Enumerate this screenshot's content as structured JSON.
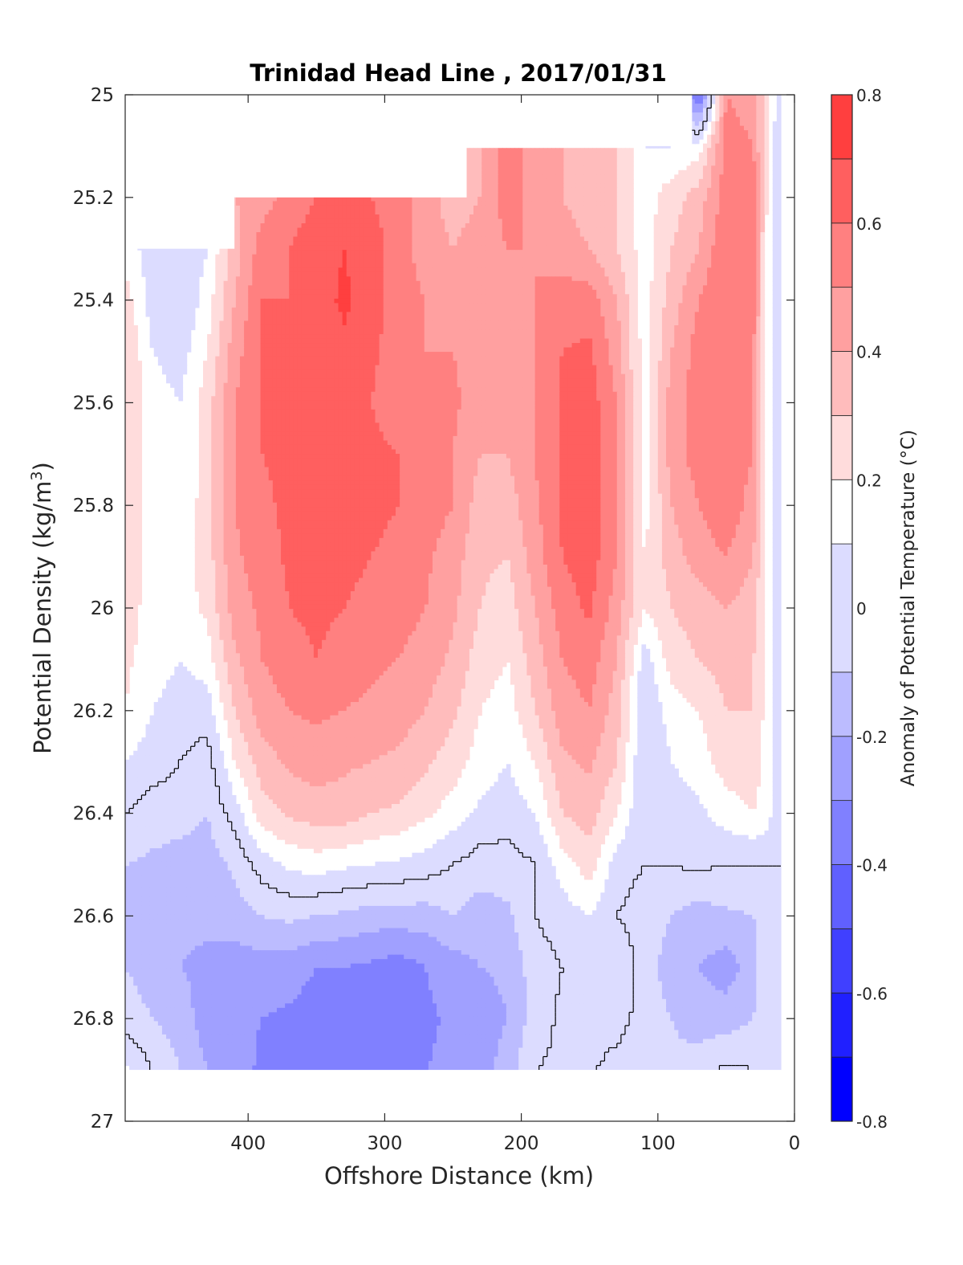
{
  "chart_data": {
    "type": "heatmap",
    "subtype": "filled-contour",
    "title": "Trinidad Head Line , 2017/01/31",
    "xlabel": "Offshore Distance (km)",
    "ylabel": "Potential Density (kg/m³)",
    "ylabel_main": "Potential Density (kg/m",
    "ylabel_sup": "3",
    "ylabel_end": ")",
    "xlim": [
      490,
      0
    ],
    "x_reversed": true,
    "ylim": [
      25,
      27
    ],
    "y_reversed": true,
    "xticks": [
      "400",
      "300",
      "200",
      "100",
      "0"
    ],
    "xtick_values": [
      400,
      300,
      200,
      100,
      0
    ],
    "yticks": [
      "25",
      "25.2",
      "25.4",
      "25.6",
      "25.8",
      "26",
      "26.2",
      "26.4",
      "26.6",
      "26.8",
      "27"
    ],
    "ytick_values": [
      25,
      25.2,
      25.4,
      25.6,
      25.8,
      26,
      26.2,
      26.4,
      26.6,
      26.8,
      27
    ],
    "colorbar": {
      "label": "Anomaly of Potential Temperature (°C)",
      "limits": [
        -0.8,
        0.8
      ],
      "ticks": [
        "0.8",
        "0.6",
        "0.4",
        "0.2",
        "0",
        "-0.2",
        "-0.4",
        "-0.6",
        "-0.8"
      ],
      "tick_values": [
        0.8,
        0.6,
        0.4,
        0.2,
        0,
        -0.2,
        -0.4,
        -0.6,
        -0.8
      ],
      "levels": [
        -0.8,
        -0.7,
        -0.6,
        -0.5,
        -0.4,
        -0.3,
        -0.2,
        -0.1,
        0.1,
        0.2,
        0.3,
        0.4,
        0.5,
        0.6,
        0.7,
        0.8
      ],
      "colors": [
        "#0000ff",
        "#2020ff",
        "#4040ff",
        "#6060ff",
        "#8080ff",
        "#a0a0ff",
        "#bcbcff",
        "#dcdcff",
        "#ffffff",
        "#ffdcdc",
        "#ffbcbc",
        "#ffa0a0",
        "#ff8080",
        "#ff5f5f",
        "#ff3f3f",
        "#ff0000"
      ]
    },
    "grid": false,
    "zero_contour_color": "#000000",
    "nodata_mask": [
      {
        "x_from": 490,
        "x_to": 410,
        "sigma_to": 25.3
      },
      {
        "x_from": 410,
        "x_to": 240,
        "sigma_to": 25.2
      },
      {
        "x_from": 240,
        "x_to": 75,
        "sigma_to": 25.1
      },
      {
        "x_from": 490,
        "x_to": 0,
        "sigma_from": 26.9
      }
    ],
    "grid_x": [
      490,
      470,
      450,
      430,
      410,
      390,
      370,
      350,
      330,
      310,
      290,
      270,
      250,
      230,
      210,
      190,
      170,
      150,
      130,
      110,
      90,
      70,
      50,
      30,
      20,
      10
    ],
    "grid_y": [
      25.0,
      25.1,
      25.2,
      25.3,
      25.4,
      25.5,
      25.6,
      25.7,
      25.8,
      25.9,
      26.0,
      26.1,
      26.2,
      26.3,
      26.4,
      26.5,
      26.6,
      26.7,
      26.8,
      26.9
    ],
    "values": [
      [
        null,
        null,
        null,
        null,
        null,
        null,
        null,
        null,
        null,
        null,
        null,
        null,
        null,
        null,
        null,
        null,
        null,
        null,
        null,
        null,
        -0.05,
        -0.45,
        0.5,
        0.45,
        0.25,
        0.0
      ],
      [
        null,
        null,
        null,
        null,
        null,
        null,
        null,
        null,
        null,
        null,
        null,
        null,
        null,
        null,
        null,
        null,
        null,
        null,
        null,
        null,
        0.1,
        0.15,
        0.55,
        0.5,
        0.2,
        0.0
      ],
      [
        null,
        null,
        null,
        null,
        null,
        0.45,
        0.55,
        0.6,
        0.65,
        0.6,
        0.55,
        0.45,
        0.35,
        0.4,
        0.55,
        0.45,
        0.4,
        0.35,
        0.3,
        0.15,
        0.25,
        0.35,
        0.55,
        0.55,
        0.2,
        0.0
      ],
      [
        0.15,
        0.05,
        0.0,
        0.1,
        0.35,
        0.55,
        0.6,
        0.65,
        0.7,
        0.65,
        0.55,
        0.45,
        0.4,
        0.45,
        0.5,
        0.5,
        0.45,
        0.4,
        0.3,
        0.15,
        0.3,
        0.4,
        0.6,
        0.55,
        0.15,
        0.0
      ],
      [
        0.25,
        0.05,
        0.0,
        0.15,
        0.4,
        0.6,
        0.6,
        0.65,
        0.72,
        0.65,
        0.55,
        0.5,
        0.45,
        0.45,
        0.45,
        0.5,
        0.55,
        0.55,
        0.4,
        0.15,
        0.35,
        0.5,
        0.6,
        0.55,
        0.15,
        0.0
      ],
      [
        0.3,
        0.1,
        0.05,
        0.2,
        0.45,
        0.62,
        0.62,
        0.6,
        0.68,
        0.62,
        0.55,
        0.5,
        0.5,
        0.45,
        0.45,
        0.5,
        0.6,
        0.62,
        0.45,
        0.15,
        0.4,
        0.55,
        0.6,
        0.5,
        0.15,
        0.0
      ],
      [
        0.3,
        0.15,
        0.1,
        0.25,
        0.5,
        0.6,
        0.6,
        0.62,
        0.65,
        0.6,
        0.55,
        0.5,
        0.52,
        0.45,
        0.4,
        0.5,
        0.62,
        0.65,
        0.5,
        0.15,
        0.45,
        0.55,
        0.6,
        0.5,
        0.15,
        0.0
      ],
      [
        0.3,
        0.15,
        0.1,
        0.25,
        0.5,
        0.6,
        0.62,
        0.65,
        0.65,
        0.62,
        0.6,
        0.55,
        0.5,
        0.4,
        0.4,
        0.5,
        0.62,
        0.65,
        0.5,
        0.15,
        0.45,
        0.55,
        0.58,
        0.5,
        0.15,
        0.0
      ],
      [
        0.3,
        0.15,
        0.12,
        0.25,
        0.5,
        0.58,
        0.62,
        0.65,
        0.65,
        0.62,
        0.6,
        0.55,
        0.5,
        0.35,
        0.35,
        0.48,
        0.62,
        0.66,
        0.5,
        0.15,
        0.4,
        0.5,
        0.58,
        0.45,
        0.15,
        0.0
      ],
      [
        0.3,
        0.15,
        0.15,
        0.25,
        0.48,
        0.55,
        0.62,
        0.64,
        0.62,
        0.6,
        0.58,
        0.52,
        0.45,
        0.32,
        0.3,
        0.45,
        0.6,
        0.65,
        0.5,
        0.2,
        0.35,
        0.45,
        0.5,
        0.4,
        0.15,
        0.0
      ],
      [
        0.25,
        0.15,
        0.15,
        0.22,
        0.45,
        0.52,
        0.6,
        0.63,
        0.6,
        0.58,
        0.55,
        0.5,
        0.42,
        0.3,
        0.25,
        0.4,
        0.55,
        0.62,
        0.45,
        0.2,
        0.3,
        0.35,
        0.4,
        0.35,
        0.15,
        0.0
      ],
      [
        0.22,
        0.15,
        0.1,
        0.15,
        0.38,
        0.5,
        0.55,
        0.6,
        0.55,
        0.52,
        0.5,
        0.45,
        0.38,
        0.25,
        0.2,
        0.35,
        0.5,
        0.55,
        0.4,
        0.05,
        0.25,
        0.3,
        0.35,
        0.3,
        0.15,
        0.0
      ],
      [
        0.2,
        0.1,
        0.05,
        0.05,
        0.3,
        0.45,
        0.5,
        0.52,
        0.5,
        0.48,
        0.45,
        0.4,
        0.32,
        0.2,
        0.15,
        0.3,
        0.45,
        0.5,
        0.35,
        0.0,
        0.15,
        0.2,
        0.3,
        0.3,
        0.15,
        0.0
      ],
      [
        0.1,
        0.05,
        0.0,
        -0.05,
        0.2,
        0.35,
        0.42,
        0.45,
        0.42,
        0.4,
        0.38,
        0.32,
        0.25,
        0.15,
        0.1,
        0.2,
        0.38,
        0.42,
        0.3,
        0.0,
        0.1,
        0.15,
        0.25,
        0.25,
        0.15,
        0.0
      ],
      [
        0.0,
        -0.05,
        -0.05,
        -0.1,
        0.05,
        0.25,
        0.32,
        0.35,
        0.35,
        0.3,
        0.28,
        0.22,
        0.15,
        0.08,
        0.05,
        0.1,
        0.3,
        0.35,
        0.2,
        0.0,
        0.05,
        0.08,
        0.15,
        0.2,
        0.15,
        0.0
      ],
      [
        -0.1,
        -0.12,
        -0.15,
        -0.15,
        -0.08,
        0.05,
        0.12,
        0.15,
        0.12,
        0.1,
        0.08,
        0.05,
        0.0,
        -0.05,
        -0.05,
        0.0,
        0.15,
        0.25,
        0.05,
        0.0,
        0.0,
        0.02,
        0.0,
        0.0,
        0.0,
        0.0
      ],
      [
        -0.12,
        -0.15,
        -0.18,
        -0.18,
        -0.15,
        -0.1,
        -0.08,
        -0.1,
        -0.12,
        -0.15,
        -0.15,
        -0.15,
        -0.1,
        -0.15,
        -0.12,
        0.0,
        0.05,
        0.1,
        0.0,
        -0.05,
        -0.1,
        -0.15,
        -0.12,
        -0.1,
        0.0,
        0.0
      ],
      [
        -0.1,
        -0.15,
        -0.2,
        -0.22,
        -0.25,
        -0.25,
        -0.25,
        -0.3,
        -0.3,
        -0.32,
        -0.35,
        -0.3,
        -0.25,
        -0.2,
        -0.18,
        -0.05,
        0.0,
        0.05,
        0.1,
        -0.05,
        -0.15,
        -0.2,
        -0.25,
        -0.15,
        0.0,
        0.0
      ],
      [
        -0.05,
        -0.1,
        -0.15,
        -0.25,
        -0.28,
        -0.3,
        -0.32,
        -0.35,
        -0.35,
        -0.35,
        -0.35,
        -0.32,
        -0.28,
        -0.25,
        -0.2,
        -0.05,
        0.02,
        0.05,
        0.05,
        -0.05,
        -0.1,
        -0.15,
        -0.15,
        -0.1,
        0.0,
        0.0
      ],
      [
        0.12,
        0.0,
        -0.1,
        -0.2,
        -0.25,
        -0.32,
        -0.3,
        -0.32,
        -0.35,
        -0.3,
        -0.35,
        -0.3,
        -0.28,
        -0.25,
        -0.15,
        0.0,
        0.02,
        0.02,
        -0.05,
        -0.1,
        -0.08,
        -0.05,
        0.02,
        0.0,
        0.0,
        0.0
      ]
    ]
  }
}
